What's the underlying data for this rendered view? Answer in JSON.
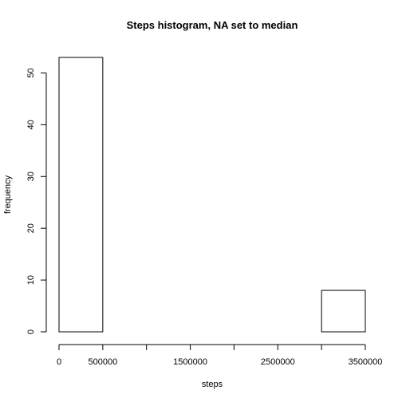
{
  "chart_data": {
    "type": "bar",
    "title": "Steps histogram, NA set to median",
    "xlabel": "steps",
    "ylabel": "frequency",
    "bins": [
      {
        "from": 0,
        "to": 500000,
        "count": 53
      },
      {
        "from": 500000,
        "to": 1000000,
        "count": 0
      },
      {
        "from": 1000000,
        "to": 1500000,
        "count": 0
      },
      {
        "from": 1500000,
        "to": 2000000,
        "count": 0
      },
      {
        "from": 2000000,
        "to": 2500000,
        "count": 0
      },
      {
        "from": 2500000,
        "to": 3000000,
        "count": 0
      },
      {
        "from": 3000000,
        "to": 3500000,
        "count": 8
      }
    ],
    "xlim": [
      0,
      3500000
    ],
    "ylim": [
      0,
      53
    ],
    "x_ticks": [
      0,
      500000,
      1000000,
      1500000,
      2000000,
      2500000,
      3000000,
      3500000
    ],
    "x_tick_labels": [
      "0",
      "500000",
      "",
      "1500000",
      "",
      "2500000",
      "",
      "3500000"
    ],
    "y_ticks": [
      0,
      10,
      20,
      30,
      40,
      50
    ],
    "y_tick_labels": [
      "0",
      "10",
      "20",
      "30",
      "40",
      "50"
    ],
    "grid": false,
    "legend": "none",
    "bar_fill": "#ffffff",
    "bar_stroke": "#000000"
  }
}
